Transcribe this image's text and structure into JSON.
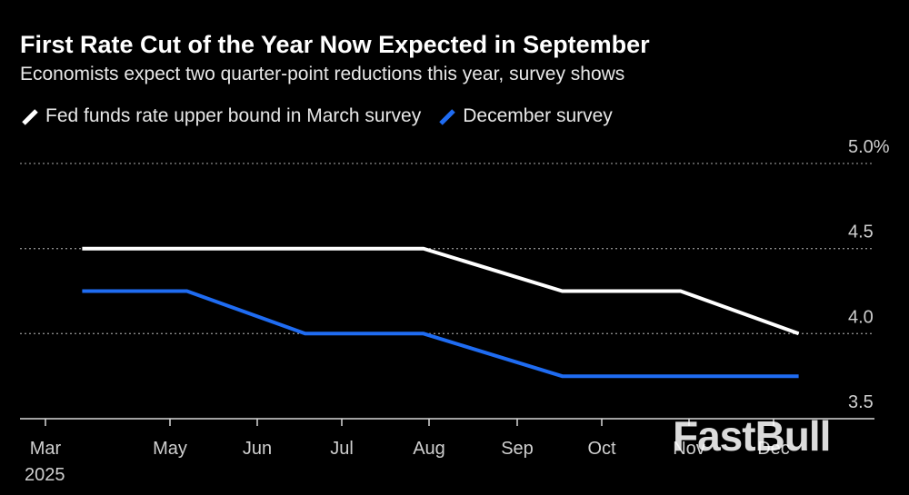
{
  "chart_data": {
    "type": "line",
    "title": "First Rate Cut of the Year Now Expected in September",
    "subtitle": "Economists expect two quarter-point reductions this year, survey shows",
    "xlabel": "",
    "ylabel": "",
    "ylim": [
      3.5,
      5.0
    ],
    "y_ticks": [
      "3.5",
      "4.0",
      "4.5",
      "5.0%"
    ],
    "y_tick_values": [
      3.5,
      4.0,
      4.5,
      5.0
    ],
    "x_ticks": [
      "Mar",
      "May",
      "Jun",
      "Jul",
      "Aug",
      "Sep",
      "Oct",
      "Nov",
      "Dec"
    ],
    "x_year_label": "2025",
    "series": [
      {
        "name": "Fed funds rate upper bound in March survey",
        "color": "#ffffff",
        "points": [
          {
            "x": "2025-03-19",
            "y": 4.5
          },
          {
            "x": "2025-07-30",
            "y": 4.5
          },
          {
            "x": "2025-09-17",
            "y": 4.25
          },
          {
            "x": "2025-10-29",
            "y": 4.25
          },
          {
            "x": "2025-12-10",
            "y": 4.0
          }
        ]
      },
      {
        "name": "December survey",
        "color": "#1f6cf2",
        "points": [
          {
            "x": "2025-03-19",
            "y": 4.25
          },
          {
            "x": "2025-05-07",
            "y": 4.25
          },
          {
            "x": "2025-06-18",
            "y": 4.0
          },
          {
            "x": "2025-07-30",
            "y": 4.0
          },
          {
            "x": "2025-09-17",
            "y": 3.75
          },
          {
            "x": "2025-10-29",
            "y": 3.75
          },
          {
            "x": "2025-12-10",
            "y": 3.75
          }
        ]
      }
    ]
  },
  "watermark": "FastBull"
}
